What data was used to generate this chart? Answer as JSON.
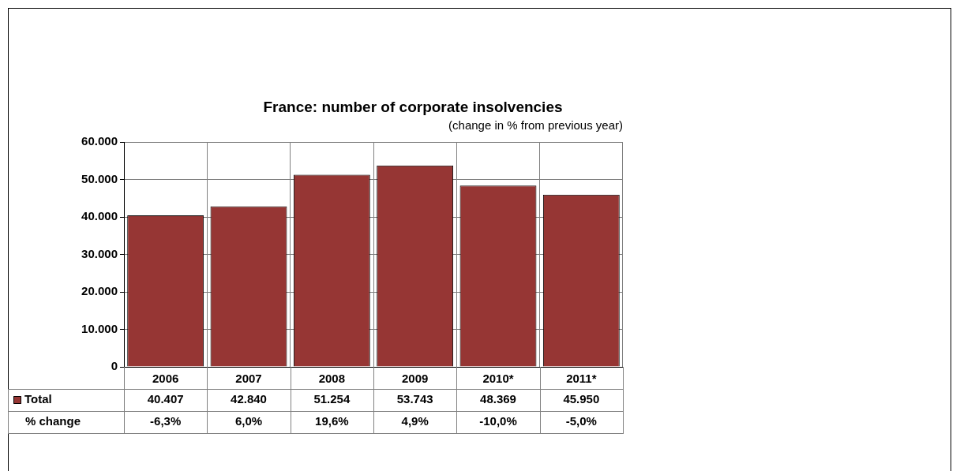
{
  "chart_data": {
    "type": "bar",
    "title": "France: number of corporate insolvencies",
    "subtitle": "(change in % from previous year)",
    "categories": [
      "2006",
      "2007",
      "2008",
      "2009",
      "2010*",
      "2011*"
    ],
    "series": [
      {
        "name": "Total",
        "color": "#963634",
        "values": [
          40407,
          42840,
          51254,
          53743,
          48369,
          45950
        ],
        "value_labels": [
          "40.407",
          "42.840",
          "51.254",
          "53.743",
          "48.369",
          "45.950"
        ]
      }
    ],
    "ylim": [
      0,
      60000
    ],
    "yticks": [
      {
        "value": 0,
        "label": "0"
      },
      {
        "value": 10000,
        "label": "10.000"
      },
      {
        "value": 20000,
        "label": "20.000"
      },
      {
        "value": 30000,
        "label": "30.000"
      },
      {
        "value": 40000,
        "label": "40.000"
      },
      {
        "value": 50000,
        "label": "50.000"
      },
      {
        "value": 60000,
        "label": "60.000"
      }
    ],
    "grid": true,
    "annotations": [
      "% change",
      "-6,3%",
      "6,0%",
      "19,6%",
      "4,9%",
      "-10,0%",
      "-5,0%"
    ]
  }
}
